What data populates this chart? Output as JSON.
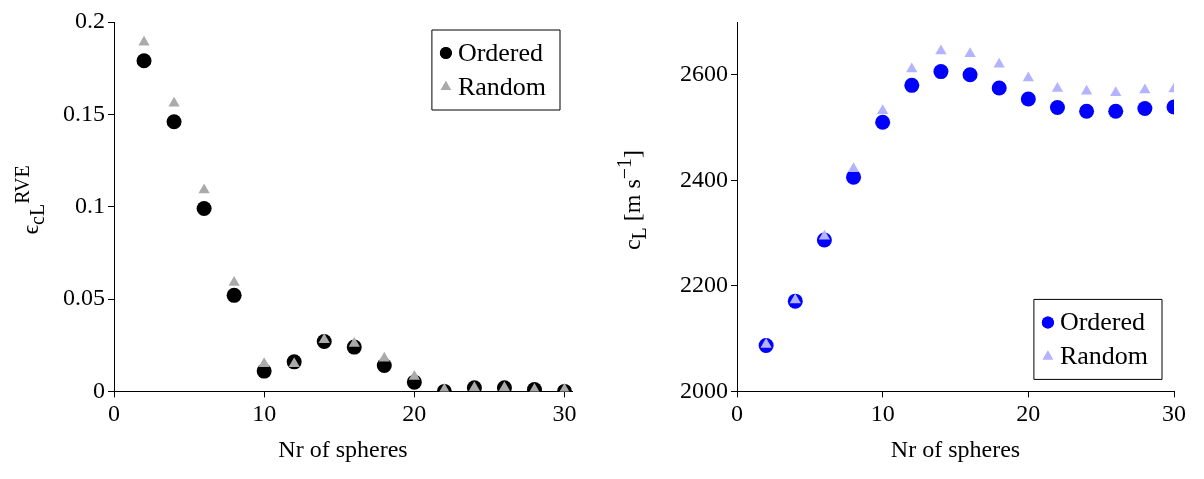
{
  "chart_data": [
    {
      "type": "scatter",
      "xlabel": "Nr of spheres",
      "ylabel": "ϵ$_{cL}$$^{RVE}$",
      "x": [
        2,
        4,
        6,
        8,
        10,
        12,
        14,
        16,
        18,
        20,
        22,
        24,
        26,
        28,
        30
      ],
      "xlim": [
        0,
        30.5
      ],
      "xticks": [
        0,
        10,
        20,
        30
      ],
      "ylim": [
        0,
        0.2
      ],
      "yticks": [
        0,
        0.05,
        0.1,
        0.15,
        0.2
      ],
      "grid": false,
      "legend": "top right",
      "series": [
        {
          "name": "Ordered",
          "color": "#000000",
          "marker": "circle",
          "values": [
            0.179,
            0.146,
            0.099,
            0.052,
            0.011,
            0.016,
            0.027,
            0.024,
            0.014,
            0.005,
            0,
            0.002,
            0.002,
            0.001,
            0
          ]
        },
        {
          "name": "Random",
          "color": "#aaaaaa",
          "marker": "triangle",
          "values": [
            0.189,
            0.156,
            0.109,
            0.059,
            0.015,
            0.015,
            0.028,
            0.026,
            0.018,
            0.008,
            0.001,
            0.002,
            0.002,
            0.001,
            0.001
          ]
        }
      ]
    },
    {
      "type": "scatter",
      "xlabel": "Nr of spheres",
      "ylabel": "c$_{L}$ [m s$^{−1}$]",
      "x": [
        2,
        4,
        6,
        8,
        10,
        12,
        14,
        16,
        18,
        20,
        22,
        24,
        26,
        28,
        30
      ],
      "xlim": [
        0,
        30
      ],
      "xticks": [
        0,
        10,
        20,
        30
      ],
      "ylim": [
        2000,
        2700
      ],
      "yticks": [
        2000,
        2200,
        2400,
        2600
      ],
      "grid": false,
      "legend": "bottom right",
      "series": [
        {
          "name": "Ordered",
          "color": "#0000ff",
          "marker": "circle",
          "values": [
            2087,
            2171,
            2287,
            2406,
            2510,
            2580,
            2606,
            2600,
            2575,
            2554,
            2538,
            2531,
            2531,
            2536,
            2539
          ]
        },
        {
          "name": "Random",
          "color": "#b3b3ff",
          "marker": "triangle",
          "values": [
            2089,
            2173,
            2294,
            2422,
            2532,
            2611,
            2645,
            2640,
            2620,
            2594,
            2574,
            2569,
            2566,
            2571,
            2573
          ]
        }
      ]
    }
  ]
}
